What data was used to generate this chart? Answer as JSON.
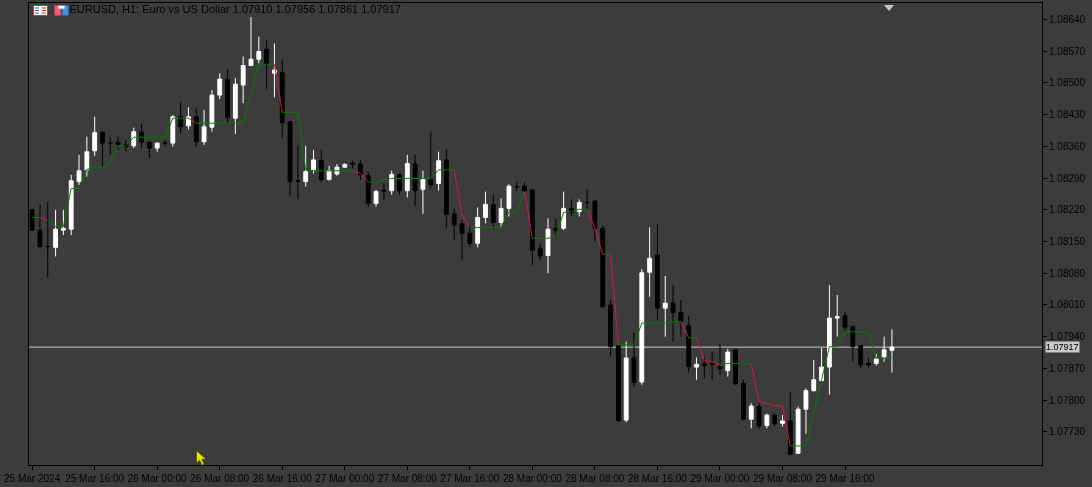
{
  "chart_data": {
    "type": "candlestick",
    "title": "EURUSD, H1: Euro vs US Dollar 1.07910 1.07956 1.07861 1.07917",
    "x": [
      "2024-03-25T08:00",
      "2024-03-25T09:00",
      "2024-03-25T10:00",
      "2024-03-25T11:00",
      "2024-03-25T12:00",
      "2024-03-25T13:00",
      "2024-03-25T14:00",
      "2024-03-25T15:00",
      "2024-03-25T16:00",
      "2024-03-25T17:00",
      "2024-03-25T18:00",
      "2024-03-25T19:00",
      "2024-03-25T20:00",
      "2024-03-25T21:00",
      "2024-03-25T22:00",
      "2024-03-25T23:00",
      "2024-03-26T00:00",
      "2024-03-26T01:00",
      "2024-03-26T02:00",
      "2024-03-26T03:00",
      "2024-03-26T04:00",
      "2024-03-26T05:00",
      "2024-03-26T06:00",
      "2024-03-26T07:00",
      "2024-03-26T08:00",
      "2024-03-26T09:00",
      "2024-03-26T10:00",
      "2024-03-26T11:00",
      "2024-03-26T12:00",
      "2024-03-26T13:00",
      "2024-03-26T14:00",
      "2024-03-26T15:00",
      "2024-03-26T16:00",
      "2024-03-26T17:00",
      "2024-03-26T18:00",
      "2024-03-26T19:00",
      "2024-03-26T20:00",
      "2024-03-26T21:00",
      "2024-03-26T22:00",
      "2024-03-26T23:00",
      "2024-03-27T00:00",
      "2024-03-27T01:00",
      "2024-03-27T02:00",
      "2024-03-27T03:00",
      "2024-03-27T04:00",
      "2024-03-27T05:00",
      "2024-03-27T06:00",
      "2024-03-27T07:00",
      "2024-03-27T08:00",
      "2024-03-27T09:00",
      "2024-03-27T10:00",
      "2024-03-27T11:00",
      "2024-03-27T12:00",
      "2024-03-27T13:00",
      "2024-03-27T14:00",
      "2024-03-27T15:00",
      "2024-03-27T16:00",
      "2024-03-27T17:00",
      "2024-03-27T18:00",
      "2024-03-27T19:00",
      "2024-03-27T20:00",
      "2024-03-27T21:00",
      "2024-03-27T22:00",
      "2024-03-27T23:00",
      "2024-03-28T00:00",
      "2024-03-28T01:00",
      "2024-03-28T02:00",
      "2024-03-28T03:00",
      "2024-03-28T04:00",
      "2024-03-28T05:00",
      "2024-03-28T06:00",
      "2024-03-28T07:00",
      "2024-03-28T08:00",
      "2024-03-28T09:00",
      "2024-03-28T10:00",
      "2024-03-28T11:00",
      "2024-03-28T12:00",
      "2024-03-28T13:00",
      "2024-03-28T14:00",
      "2024-03-28T15:00",
      "2024-03-28T16:00",
      "2024-03-28T17:00",
      "2024-03-28T18:00",
      "2024-03-28T19:00",
      "2024-03-28T20:00",
      "2024-03-28T21:00",
      "2024-03-28T22:00",
      "2024-03-28T23:00",
      "2024-03-29T00:00",
      "2024-03-29T01:00",
      "2024-03-29T02:00",
      "2024-03-29T03:00",
      "2024-03-29T04:00",
      "2024-03-29T05:00",
      "2024-03-29T06:00",
      "2024-03-29T07:00",
      "2024-03-29T08:00",
      "2024-03-29T09:00",
      "2024-03-29T10:00",
      "2024-03-29T11:00",
      "2024-03-29T12:00",
      "2024-03-29T13:00",
      "2024-03-29T14:00",
      "2024-03-29T15:00",
      "2024-03-29T16:00",
      "2024-03-29T17:00",
      "2024-03-29T18:00",
      "2024-03-29T19:00",
      "2024-03-29T20:00",
      "2024-03-29T21:00",
      "2024-03-29T22:00"
    ],
    "ohlc": [
      [
        1.0822,
        1.08222,
        1.08173,
        1.08175
      ],
      [
        1.08175,
        1.08231,
        1.08135,
        1.08139
      ],
      [
        1.08139,
        1.08238,
        1.08072,
        1.08139
      ],
      [
        1.08137,
        1.0822,
        1.08117,
        1.08177
      ],
      [
        1.08175,
        1.0822,
        1.08164,
        1.08179
      ],
      [
        1.08177,
        1.08297,
        1.08164,
        1.08284
      ],
      [
        1.08282,
        1.08341,
        1.08275,
        1.08306
      ],
      [
        1.08308,
        1.08381,
        1.08293,
        1.08348
      ],
      [
        1.0835,
        1.08425,
        1.08339,
        1.0839
      ],
      [
        1.08391,
        1.08394,
        1.08315,
        1.08367
      ],
      [
        1.08367,
        1.08381,
        1.08341,
        1.08367
      ],
      [
        1.08369,
        1.08381,
        1.08352,
        1.08364
      ],
      [
        1.08364,
        1.08374,
        1.08348,
        1.08359
      ],
      [
        1.08361,
        1.08401,
        1.08356,
        1.08392
      ],
      [
        1.08391,
        1.08409,
        1.08356,
        1.08369
      ],
      [
        1.08369,
        1.0837,
        1.08334,
        1.08356
      ],
      [
        1.08356,
        1.08368,
        1.08348,
        1.08367
      ],
      [
        1.08367,
        1.08374,
        1.08359,
        1.08367
      ],
      [
        1.08367,
        1.08429,
        1.08359,
        1.08425
      ],
      [
        1.08425,
        1.08458,
        1.08389,
        1.08403
      ],
      [
        1.08405,
        1.08446,
        1.08397,
        1.08425
      ],
      [
        1.08425,
        1.08444,
        1.08359,
        1.0837
      ],
      [
        1.0837,
        1.0844,
        1.08363,
        1.08403
      ],
      [
        1.08402,
        1.08484,
        1.08392,
        1.08473
      ],
      [
        1.08473,
        1.08521,
        1.08464,
        1.08508
      ],
      [
        1.08508,
        1.0853,
        1.08411,
        1.08423
      ],
      [
        1.08422,
        1.0851,
        1.08387,
        1.08497
      ],
      [
        1.08495,
        1.08558,
        1.08455,
        1.08538
      ],
      [
        1.08538,
        1.08645,
        1.08537,
        1.08552
      ],
      [
        1.08552,
        1.08602,
        1.08543,
        1.08569
      ],
      [
        1.08574,
        1.08594,
        1.08486,
        1.08541
      ],
      [
        1.08521,
        1.08587,
        1.08468,
        1.08528
      ],
      [
        1.08522,
        1.0855,
        1.08378,
        1.08412
      ],
      [
        1.08414,
        1.08416,
        1.0825,
        1.08282
      ],
      [
        1.08283,
        1.08361,
        1.08245,
        1.08283
      ],
      [
        1.08282,
        1.08361,
        1.08271,
        1.08304
      ],
      [
        1.08308,
        1.08352,
        1.083,
        1.0833
      ],
      [
        1.08328,
        1.08352,
        1.08282,
        1.08287
      ],
      [
        1.08287,
        1.08317,
        1.08284,
        1.08306
      ],
      [
        1.08299,
        1.08321,
        1.08295,
        1.08314
      ],
      [
        1.08314,
        1.08322,
        1.08313,
        1.0832
      ],
      [
        1.08323,
        1.08328,
        1.08311,
        1.08321
      ],
      [
        1.08321,
        1.0833,
        1.08286,
        1.08297
      ],
      [
        1.08295,
        1.08304,
        1.08227,
        1.08234
      ],
      [
        1.08234,
        1.08264,
        1.08227,
        1.0826
      ],
      [
        1.08263,
        1.08278,
        1.08242,
        1.08261
      ],
      [
        1.08262,
        1.08306,
        1.08253,
        1.08298
      ],
      [
        1.08298,
        1.083,
        1.08253,
        1.08262
      ],
      [
        1.08262,
        1.08341,
        1.08247,
        1.08322
      ],
      [
        1.08321,
        1.08341,
        1.08228,
        1.08262
      ],
      [
        1.08265,
        1.08306,
        1.08211,
        1.08287
      ],
      [
        1.08287,
        1.08391,
        1.08267,
        1.08275
      ],
      [
        1.08278,
        1.08348,
        1.08262,
        1.08328
      ],
      [
        1.0833,
        1.08353,
        1.08181,
        1.0821
      ],
      [
        1.08211,
        1.08223,
        1.08152,
        1.08186
      ],
      [
        1.08189,
        1.08197,
        1.08108,
        1.08168
      ],
      [
        1.08168,
        1.08186,
        1.08139,
        1.08146
      ],
      [
        1.08146,
        1.08225,
        1.08137,
        1.08203
      ],
      [
        1.08203,
        1.0826,
        1.0819,
        1.08232
      ],
      [
        1.08231,
        1.08253,
        1.08179,
        1.08192
      ],
      [
        1.08192,
        1.08245,
        1.08181,
        1.08223
      ],
      [
        1.08223,
        1.08276,
        1.08205,
        1.08272
      ],
      [
        1.08271,
        1.08282,
        1.08262,
        1.08271
      ],
      [
        1.08272,
        1.08281,
        1.08256,
        1.08262
      ],
      [
        1.08264,
        1.08265,
        1.08098,
        1.08131
      ],
      [
        1.08134,
        1.08146,
        1.08109,
        1.08118
      ],
      [
        1.08119,
        1.08201,
        1.0808,
        1.08177
      ],
      [
        1.08179,
        1.08201,
        1.08161,
        1.08175
      ],
      [
        1.08179,
        1.0826,
        1.08175,
        1.08223
      ],
      [
        1.08223,
        1.08243,
        1.08205,
        1.08214
      ],
      [
        1.08216,
        1.08243,
        1.08205,
        1.08236
      ],
      [
        1.08236,
        1.08265,
        1.08221,
        1.08236
      ],
      [
        1.08239,
        1.08242,
        1.0815,
        1.08179
      ],
      [
        1.08179,
        1.08186,
        1.08003,
        1.08006
      ],
      [
        1.0801,
        1.08021,
        1.07898,
        1.07918
      ],
      [
        1.0792,
        1.0792,
        1.07751,
        1.07755
      ],
      [
        1.07756,
        1.07929,
        1.07751,
        1.07893
      ],
      [
        1.07893,
        1.0795,
        1.07829,
        1.07839
      ],
      [
        1.0784,
        1.08089,
        1.07834,
        1.08081
      ],
      [
        1.08082,
        1.08181,
        1.08028,
        1.08113
      ],
      [
        1.0812,
        1.08189,
        1.07977,
        1.08003
      ],
      [
        1.08003,
        1.08074,
        1.0794,
        1.08014
      ],
      [
        1.08014,
        1.08054,
        1.07929,
        1.07993
      ],
      [
        1.07994,
        1.08021,
        1.0794,
        1.07973
      ],
      [
        1.07964,
        1.07986,
        1.07861,
        1.07874
      ],
      [
        1.07873,
        1.07894,
        1.07845,
        1.07879
      ],
      [
        1.0788,
        1.07895,
        1.07848,
        1.07876
      ],
      [
        1.07883,
        1.07907,
        1.07845,
        1.07879
      ],
      [
        1.07874,
        1.07924,
        1.07856,
        1.0787
      ],
      [
        1.07865,
        1.07913,
        1.07852,
        1.07906
      ],
      [
        1.07911,
        1.07912,
        1.07834,
        1.07836
      ],
      [
        1.07837,
        1.07845,
        1.07756,
        1.07758
      ],
      [
        1.07758,
        1.07793,
        1.07738,
        1.07787
      ],
      [
        1.07786,
        1.07793,
        1.07738,
        1.07743
      ],
      [
        1.07744,
        1.0777,
        1.07738,
        1.07767
      ],
      [
        1.07767,
        1.0777,
        1.07742,
        1.07748
      ],
      [
        1.07749,
        1.07767,
        1.07742,
        1.07754
      ],
      [
        1.07754,
        1.07819,
        1.07678,
        1.07681
      ],
      [
        1.07683,
        1.07786,
        1.07682,
        1.0778
      ],
      [
        1.0778,
        1.07826,
        1.07726,
        1.07821
      ],
      [
        1.07821,
        1.07889,
        1.07819,
        1.07845
      ],
      [
        1.07843,
        1.07915,
        1.07841,
        1.07873
      ],
      [
        1.07873,
        1.08054,
        1.07812,
        1.07981
      ],
      [
        1.07981,
        1.08032,
        1.0794,
        1.07984
      ],
      [
        1.07986,
        1.07995,
        1.07951,
        1.07961
      ],
      [
        1.07962,
        1.07964,
        1.07885,
        1.07918
      ],
      [
        1.0792,
        1.0792,
        1.0787,
        1.07878
      ],
      [
        1.07881,
        1.07893,
        1.07872,
        1.07878
      ],
      [
        1.07881,
        1.07902,
        1.07876,
        1.07891
      ],
      [
        1.07895,
        1.0794,
        1.07885,
        1.07911
      ],
      [
        1.0791,
        1.07956,
        1.07861,
        1.07917
      ]
    ],
    "colors": [
      "#000000",
      "#000000",
      "#000000",
      "#ffffff",
      "#ffffff",
      "#ffffff",
      "#ffffff",
      "#ffffff",
      "#ffffff",
      "#000000",
      "#000000",
      "#000000",
      "#000000",
      "#ffffff",
      "#000000",
      "#000000",
      "#ffffff",
      "#000000",
      "#ffffff",
      "#000000",
      "#ffffff",
      "#000000",
      "#ffffff",
      "#ffffff",
      "#ffffff",
      "#000000",
      "#ffffff",
      "#ffffff",
      "#ffffff",
      "#ffffff",
      "#000000",
      "#ffffff",
      "#000000",
      "#000000",
      "#000000",
      "#ffffff",
      "#ffffff",
      "#000000",
      "#ffffff",
      "#ffffff",
      "#ffffff",
      "#000000",
      "#000000",
      "#000000",
      "#ffffff",
      "#000000",
      "#ffffff",
      "#000000",
      "#ffffff",
      "#000000",
      "#ffffff",
      "#000000",
      "#ffffff",
      "#000000",
      "#000000",
      "#000000",
      "#000000",
      "#ffffff",
      "#ffffff",
      "#000000",
      "#ffffff",
      "#ffffff",
      "#000000",
      "#000000",
      "#000000",
      "#000000",
      "#ffffff",
      "#000000",
      "#ffffff",
      "#000000",
      "#ffffff",
      "#000000",
      "#000000",
      "#000000",
      "#000000",
      "#000000",
      "#ffffff",
      "#000000",
      "#ffffff",
      "#ffffff",
      "#000000",
      "#ffffff",
      "#000000",
      "#000000",
      "#000000",
      "#ffffff",
      "#000000",
      "#000000",
      "#000000",
      "#ffffff",
      "#000000",
      "#000000",
      "#ffffff",
      "#000000",
      "#ffffff",
      "#000000",
      "#ffffff",
      "#000000",
      "#ffffff",
      "#ffffff",
      "#ffffff",
      "#ffffff",
      "#ffffff",
      "#ffffff",
      "#000000",
      "#000000",
      "#000000",
      "#000000",
      "#ffffff",
      "#ffffff",
      "#ffffff"
    ],
    "series": [
      {
        "type": "line",
        "color": "#008000",
        "x": [
          "2024-03-25T08:00",
          "2024-03-25T09:00"
        ],
        "values": [
          1.08203,
          1.08203
        ]
      },
      {
        "type": "line",
        "color": "#dc143c",
        "x": [
          "2024-03-25T09:00",
          "2024-03-25T10:00"
        ],
        "values": [
          1.08203,
          1.08196
        ]
      },
      {
        "type": "line",
        "color": "#008000",
        "x": [
          "2024-03-25T10:00",
          "2024-03-25T11:00",
          "2024-03-25T12:00",
          "2024-03-25T13:00",
          "2024-03-25T14:00",
          "2024-03-25T15:00",
          "2024-03-25T16:00",
          "2024-03-25T17:00",
          "2024-03-25T18:00",
          "2024-03-25T19:00",
          "2024-03-25T20:00",
          "2024-03-25T21:00",
          "2024-03-25T22:00",
          "2024-03-25T23:00",
          "2024-03-26T00:00",
          "2024-03-26T01:00",
          "2024-03-26T02:00",
          "2024-03-26T03:00",
          "2024-03-26T04:00"
        ],
        "values": [
          1.08196,
          1.08183,
          1.08183,
          1.08267,
          1.08267,
          1.08309,
          1.08314,
          1.08314,
          1.08324,
          1.08361,
          1.08361,
          1.0838,
          1.0838,
          1.0838,
          1.0838,
          1.0838,
          1.08422,
          1.08422,
          1.08422
        ]
      },
      {
        "type": "line",
        "color": "#dc143c",
        "x": [
          "2024-03-26T04:00",
          "2024-03-26T05:00"
        ],
        "values": [
          1.08422,
          1.08411
        ]
      },
      {
        "type": "line",
        "color": "#008000",
        "x": [
          "2024-03-26T05:00",
          "2024-03-26T06:00",
          "2024-03-26T07:00",
          "2024-03-26T08:00",
          "2024-03-26T09:00",
          "2024-03-26T10:00",
          "2024-03-26T11:00",
          "2024-03-26T12:00",
          "2024-03-26T13:00",
          "2024-03-26T14:00",
          "2024-03-26T15:00"
        ],
        "values": [
          1.08411,
          1.08411,
          1.08411,
          1.08411,
          1.08411,
          1.08411,
          1.08411,
          1.08476,
          1.08541,
          1.08541,
          1.08541
        ]
      },
      {
        "type": "line",
        "color": "#dc143c",
        "x": [
          "2024-03-26T15:00",
          "2024-03-26T16:00"
        ],
        "values": [
          1.08541,
          1.08435
        ]
      },
      {
        "type": "line",
        "color": "#008000",
        "x": [
          "2024-03-26T16:00",
          "2024-03-26T17:00",
          "2024-03-26T18:00",
          "2024-03-26T19:00",
          "2024-03-26T20:00",
          "2024-03-26T21:00",
          "2024-03-26T22:00",
          "2024-03-26T23:00",
          "2024-03-27T00:00",
          "2024-03-27T01:00"
        ],
        "values": [
          1.08435,
          1.08435,
          1.08435,
          1.08308,
          1.08306,
          1.08306,
          1.08306,
          1.08306,
          1.08306,
          1.08306
        ]
      },
      {
        "type": "line",
        "color": "#dc143c",
        "x": [
          "2024-03-27T01:00",
          "2024-03-27T02:00",
          "2024-03-27T03:00"
        ],
        "values": [
          1.08306,
          1.083,
          1.08281
        ]
      },
      {
        "type": "line",
        "color": "#008000",
        "x": [
          "2024-03-27T03:00",
          "2024-03-27T04:00",
          "2024-03-27T05:00",
          "2024-03-27T06:00",
          "2024-03-27T07:00",
          "2024-03-27T08:00",
          "2024-03-27T09:00",
          "2024-03-27T10:00",
          "2024-03-27T11:00",
          "2024-03-27T12:00",
          "2024-03-27T13:00",
          "2024-03-27T14:00"
        ],
        "values": [
          1.08281,
          1.08281,
          1.08286,
          1.08289,
          1.08289,
          1.08289,
          1.08289,
          1.08289,
          1.08289,
          1.08308,
          1.08308,
          1.08308
        ]
      },
      {
        "type": "line",
        "color": "#dc143c",
        "x": [
          "2024-03-27T14:00",
          "2024-03-27T15:00",
          "2024-03-27T16:00"
        ],
        "values": [
          1.08308,
          1.08208,
          1.08181
        ]
      },
      {
        "type": "line",
        "color": "#008000",
        "x": [
          "2024-03-27T16:00",
          "2024-03-27T17:00",
          "2024-03-27T18:00",
          "2024-03-27T19:00",
          "2024-03-27T20:00",
          "2024-03-27T21:00",
          "2024-03-27T22:00",
          "2024-03-27T23:00"
        ],
        "values": [
          1.08181,
          1.08181,
          1.08181,
          1.08181,
          1.08181,
          1.08215,
          1.08215,
          1.0826
        ]
      },
      {
        "type": "line",
        "color": "#dc143c",
        "x": [
          "2024-03-27T23:00",
          "2024-03-28T00:00"
        ],
        "values": [
          1.0826,
          1.08157
        ]
      },
      {
        "type": "line",
        "color": "#008000",
        "x": [
          "2024-03-28T00:00",
          "2024-03-28T01:00",
          "2024-03-28T02:00",
          "2024-03-28T03:00",
          "2024-03-28T04:00",
          "2024-03-28T05:00",
          "2024-03-28T06:00",
          "2024-03-28T07:00"
        ],
        "values": [
          1.08157,
          1.08157,
          1.08157,
          1.08162,
          1.08214,
          1.08216,
          1.08221,
          1.08221
        ]
      },
      {
        "type": "line",
        "color": "#dc143c",
        "x": [
          "2024-03-28T07:00",
          "2024-03-28T08:00",
          "2024-03-28T09:00"
        ],
        "values": [
          1.08221,
          1.08179,
          1.08122
        ]
      },
      {
        "type": "line",
        "color": "#008000",
        "x": [
          "2024-03-28T09:00",
          "2024-03-28T10:00"
        ],
        "values": [
          1.08122,
          1.08122
        ]
      },
      {
        "type": "line",
        "color": "#dc143c",
        "x": [
          "2024-03-28T10:00",
          "2024-03-28T11:00"
        ],
        "values": [
          1.08122,
          1.07922
        ]
      },
      {
        "type": "line",
        "color": "#008000",
        "x": [
          "2024-03-28T11:00",
          "2024-03-28T12:00",
          "2024-03-28T13:00",
          "2024-03-28T14:00",
          "2024-03-28T15:00",
          "2024-03-28T16:00",
          "2024-03-28T17:00",
          "2024-03-28T18:00",
          "2024-03-28T19:00"
        ],
        "values": [
          1.07922,
          1.07922,
          1.07922,
          1.0797,
          1.0797,
          1.0797,
          1.0797,
          1.07973,
          1.07973
        ]
      },
      {
        "type": "line",
        "color": "#dc143c",
        "x": [
          "2024-03-28T19:00",
          "2024-03-28T20:00"
        ],
        "values": [
          1.07973,
          1.07937
        ]
      },
      {
        "type": "line",
        "color": "#008000",
        "x": [
          "2024-03-28T20:00",
          "2024-03-28T21:00"
        ],
        "values": [
          1.07937,
          1.07937
        ]
      },
      {
        "type": "line",
        "color": "#dc143c",
        "x": [
          "2024-03-28T21:00",
          "2024-03-28T22:00",
          "2024-03-28T23:00",
          "2024-03-29T00:00"
        ],
        "values": [
          1.07937,
          1.07887,
          1.07884,
          1.07878
        ]
      },
      {
        "type": "line",
        "color": "#008000",
        "x": [
          "2024-03-29T00:00",
          "2024-03-29T01:00",
          "2024-03-29T02:00",
          "2024-03-29T03:00",
          "2024-03-29T04:00"
        ],
        "values": [
          1.07878,
          1.07881,
          1.07881,
          1.07881,
          1.07881
        ]
      },
      {
        "type": "line",
        "color": "#dc143c",
        "x": [
          "2024-03-29T04:00",
          "2024-03-29T05:00",
          "2024-03-29T06:00",
          "2024-03-29T07:00",
          "2024-03-29T08:00",
          "2024-03-29T09:00"
        ],
        "values": [
          1.07881,
          1.07797,
          1.07793,
          1.07788,
          1.07786,
          1.07699
        ]
      },
      {
        "type": "line",
        "color": "#008000",
        "x": [
          "2024-03-29T09:00",
          "2024-03-29T10:00",
          "2024-03-29T11:00",
          "2024-03-29T12:00",
          "2024-03-29T13:00",
          "2024-03-29T14:00",
          "2024-03-29T15:00",
          "2024-03-29T16:00",
          "2024-03-29T17:00",
          "2024-03-29T18:00",
          "2024-03-29T19:00",
          "2024-03-29T20:00",
          "2024-03-29T21:00",
          "2024-03-29T22:00"
        ],
        "values": [
          1.07699,
          1.07699,
          1.07699,
          1.07771,
          1.07845,
          1.07918,
          1.07918,
          1.07951,
          1.07951,
          1.07951,
          1.07949,
          1.07893,
          1.07893,
          1.07893
        ]
      }
    ],
    "xlim": [
      "2024-03-25T07:36",
      "2024-03-30T17:12"
    ],
    "xticks": [
      {
        "value": "2024-03-25T08:00",
        "label": "25 Mar 2024"
      },
      {
        "value": "2024-03-25T16:00",
        "label": "25 Mar 16:00"
      },
      {
        "value": "2024-03-26T00:00",
        "label": "26 Mar 00:00"
      },
      {
        "value": "2024-03-26T08:00",
        "label": "26 Mar 08:00"
      },
      {
        "value": "2024-03-26T16:00",
        "label": "26 Mar 16:00"
      },
      {
        "value": "2024-03-27T00:00",
        "label": "27 Mar 00:00"
      },
      {
        "value": "2024-03-27T08:00",
        "label": "27 Mar 08:00"
      },
      {
        "value": "2024-03-27T16:00",
        "label": "27 Mar 16:00"
      },
      {
        "value": "2024-03-28T00:00",
        "label": "28 Mar 00:00"
      },
      {
        "value": "2024-03-28T08:00",
        "label": "28 Mar 08:00"
      },
      {
        "value": "2024-03-28T16:00",
        "label": "28 Mar 16:00"
      },
      {
        "value": "2024-03-29T00:00",
        "label": "29 Mar 00:00"
      },
      {
        "value": "2024-03-29T08:00",
        "label": "29 Mar 08:00"
      },
      {
        "value": "2024-03-29T16:00",
        "label": "29 Mar 16:00"
      }
    ],
    "ylim": [
      1.07657,
      1.08676
    ],
    "yticks": [
      {
        "value": 1.0773,
        "label": "1.07730"
      },
      {
        "value": 1.078,
        "label": "1.07800"
      },
      {
        "value": 1.0787,
        "label": "1.07870"
      },
      {
        "value": 1.0794,
        "label": "1.07940"
      },
      {
        "value": 1.0801,
        "label": "1.08010"
      },
      {
        "value": 1.0808,
        "label": "1.08080"
      },
      {
        "value": 1.0815,
        "label": "1.08150"
      },
      {
        "value": 1.0822,
        "label": "1.08220"
      },
      {
        "value": 1.0829,
        "label": "1.08290"
      },
      {
        "value": 1.0836,
        "label": "1.08360"
      },
      {
        "value": 1.0843,
        "label": "1.08430"
      },
      {
        "value": 1.085,
        "label": "1.08500"
      },
      {
        "value": 1.0857,
        "label": "1.08570"
      },
      {
        "value": 1.0864,
        "label": "1.08640"
      }
    ],
    "ref_lines": [
      {
        "axis": "y",
        "value": 1.07917,
        "label": "1.07917",
        "color": "#c8c8c8"
      }
    ]
  }
}
